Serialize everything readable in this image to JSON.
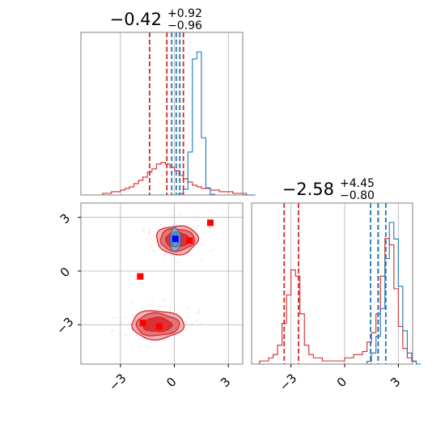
{
  "chart_data": {
    "type": "corner",
    "grid": true,
    "colors": {
      "red": "#d62728",
      "blue": "#1f77b4",
      "marker_red": "#ff0000",
      "marker_blue": "#0000ff"
    },
    "titles": [
      {
        "main": "−0.42",
        "sup": "+0.92",
        "sub": "−0.96"
      },
      {
        "main": "−2.58",
        "sup": "+4.45",
        "sub": "−0.80"
      }
    ],
    "xlim": [
      -5.2,
      3.8
    ],
    "ylim": [
      -5.2,
      3.8
    ],
    "ticks": [
      -3,
      0,
      3
    ],
    "tick_labels": [
      "−3",
      "0",
      "3"
    ],
    "hist1": {
      "bin_start": -4.5,
      "bin_width": 0.25,
      "red_counts": [
        0,
        0,
        1,
        1,
        2,
        2,
        3,
        4,
        5,
        7,
        9,
        11,
        14,
        16,
        19,
        20,
        19,
        17,
        15,
        12,
        10,
        8,
        6,
        5,
        4,
        4,
        3,
        3,
        2,
        2,
        2,
        1,
        1,
        1,
        0,
        0
      ],
      "blue_counts": [
        0,
        0,
        0,
        0,
        0,
        0,
        0,
        0,
        0,
        0,
        0,
        0,
        0,
        0,
        0,
        0,
        0,
        0,
        0,
        2,
        8,
        60,
        190,
        200,
        80,
        10,
        1,
        0,
        0,
        0,
        0,
        0,
        0,
        0,
        0,
        0
      ],
      "red_quantiles": [
        -1.38,
        -0.42,
        0.5
      ],
      "blue_quantiles": [
        -0.15,
        0.1,
        0.3
      ]
    },
    "hist2": {
      "bin_start": -5.0,
      "bin_width": 0.25,
      "red_counts": [
        0,
        1,
        1,
        2,
        3,
        6,
        13,
        22,
        30,
        28,
        16,
        6,
        3,
        2,
        2,
        1,
        1,
        1,
        1,
        1,
        2,
        2,
        3,
        3,
        4,
        7,
        10,
        16,
        28,
        40,
        38,
        24,
        12,
        5,
        2,
        1,
        0
      ],
      "blue_counts": [
        0,
        0,
        0,
        0,
        0,
        0,
        0,
        0,
        0,
        0,
        0,
        0,
        0,
        0,
        0,
        0,
        0,
        0,
        0,
        0,
        0,
        0,
        0,
        0,
        0,
        1,
        4,
        10,
        20,
        38,
        51,
        45,
        28,
        12,
        4,
        1,
        0
      ],
      "red_quantiles": [
        -3.38,
        -2.58,
        1.87
      ],
      "blue_quantiles": [
        1.45,
        1.87,
        2.3
      ]
    },
    "scatter": {
      "red_contours": [
        {
          "cx": 0.15,
          "cy": 1.75,
          "levels": [
            [
              1.15,
              0.8
            ],
            [
              0.95,
              0.62
            ],
            [
              0.65,
              0.42
            ]
          ]
        },
        {
          "cx": -0.95,
          "cy": -3.0,
          "levels": [
            [
              1.45,
              0.8
            ],
            [
              1.2,
              0.62
            ],
            [
              0.8,
              0.4
            ]
          ]
        }
      ],
      "blue_contours": [
        {
          "cx": 0.05,
          "cy": 1.75,
          "levels": [
            [
              0.28,
              0.65
            ],
            [
              0.18,
              0.42
            ]
          ]
        }
      ],
      "red_markers": [
        [
          2.0,
          2.7
        ],
        [
          0.85,
          1.7
        ],
        [
          -1.9,
          -0.3
        ],
        [
          -1.75,
          -2.9
        ],
        [
          -0.85,
          -3.1
        ]
      ],
      "blue_markers": [
        [
          0.05,
          1.8
        ]
      ]
    }
  }
}
